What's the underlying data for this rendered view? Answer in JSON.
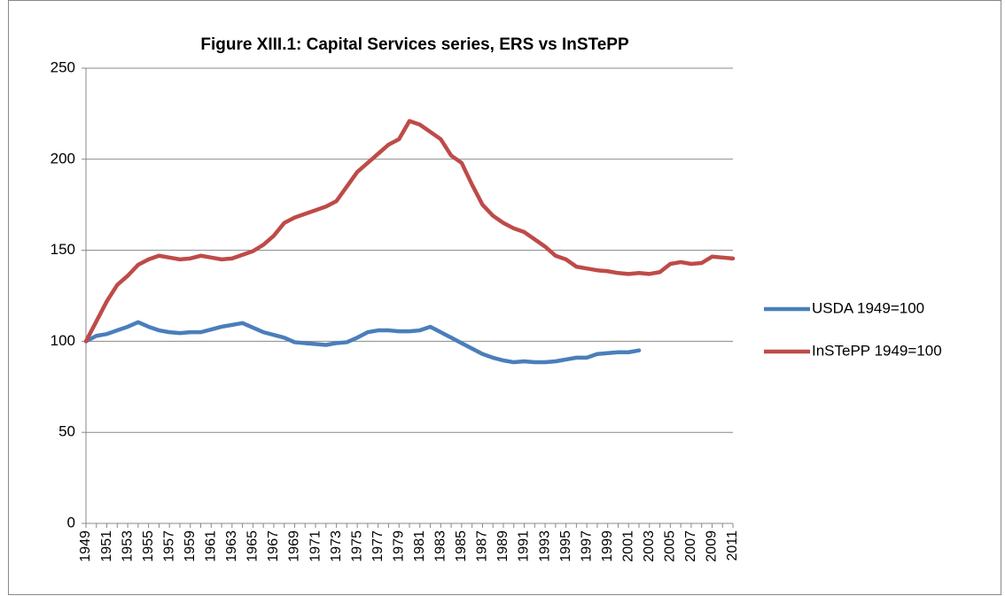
{
  "chart_data": {
    "type": "line",
    "title": "Figure XIII.1: Capital Services series, ERS vs InSTePP",
    "categories": [
      "1949",
      null,
      "1951",
      null,
      "1953",
      null,
      "1955",
      null,
      "1957",
      null,
      "1959",
      null,
      "1961",
      null,
      "1963",
      null,
      "1965",
      null,
      "1967",
      null,
      "1969",
      null,
      "1971",
      null,
      "1973",
      null,
      "1975",
      null,
      "1977",
      null,
      "1979",
      null,
      "1981",
      null,
      "1983",
      null,
      "1985",
      null,
      "1987",
      null,
      "1989",
      null,
      "1991",
      null,
      "1993",
      null,
      "1995",
      null,
      "1997",
      null,
      "1999",
      null,
      "2001",
      null,
      "2003",
      null,
      "2005",
      null,
      "2007",
      null,
      "2009",
      null,
      "2011"
    ],
    "series": [
      {
        "name": "USDA 1949=100",
        "color": "#4a7ebb",
        "values": [
          100,
          103,
          104,
          106,
          108,
          110.5,
          108,
          106,
          105,
          104.5,
          105,
          105,
          106.5,
          108,
          109,
          110,
          107.5,
          105,
          103.5,
          102,
          99.5,
          99,
          98.5,
          98,
          99,
          99.5,
          102,
          105,
          106,
          106,
          105.5,
          105.5,
          106,
          108,
          105,
          102,
          99,
          96,
          93,
          91,
          89.5,
          88.5,
          89,
          88.5,
          88.5,
          89,
          90,
          91,
          91,
          93,
          93.5,
          94,
          94,
          95,
          null,
          null,
          null,
          null,
          null,
          null,
          null,
          null,
          null
        ]
      },
      {
        "name": "InSTePP 1949=100",
        "color": "#be4b48",
        "values": [
          100,
          111,
          122,
          131,
          136,
          142,
          145,
          147,
          146,
          145,
          145.5,
          147,
          146,
          145,
          145.5,
          147.5,
          149.5,
          153,
          158,
          165,
          168,
          170,
          172,
          174,
          177,
          185,
          193,
          198,
          203,
          208,
          211,
          221,
          219,
          215,
          211,
          202,
          198,
          186,
          175,
          169,
          165,
          162,
          160,
          156,
          152,
          147,
          145,
          141,
          140,
          139,
          138.5,
          137.5,
          137,
          137.5,
          137,
          138,
          142.5,
          143.5,
          142.5,
          143,
          146.5,
          146,
          145.5
        ]
      }
    ],
    "ylim": [
      0,
      250
    ],
    "yticks": [
      0,
      50,
      100,
      150,
      200,
      250
    ],
    "grid": true,
    "legend": "right"
  }
}
